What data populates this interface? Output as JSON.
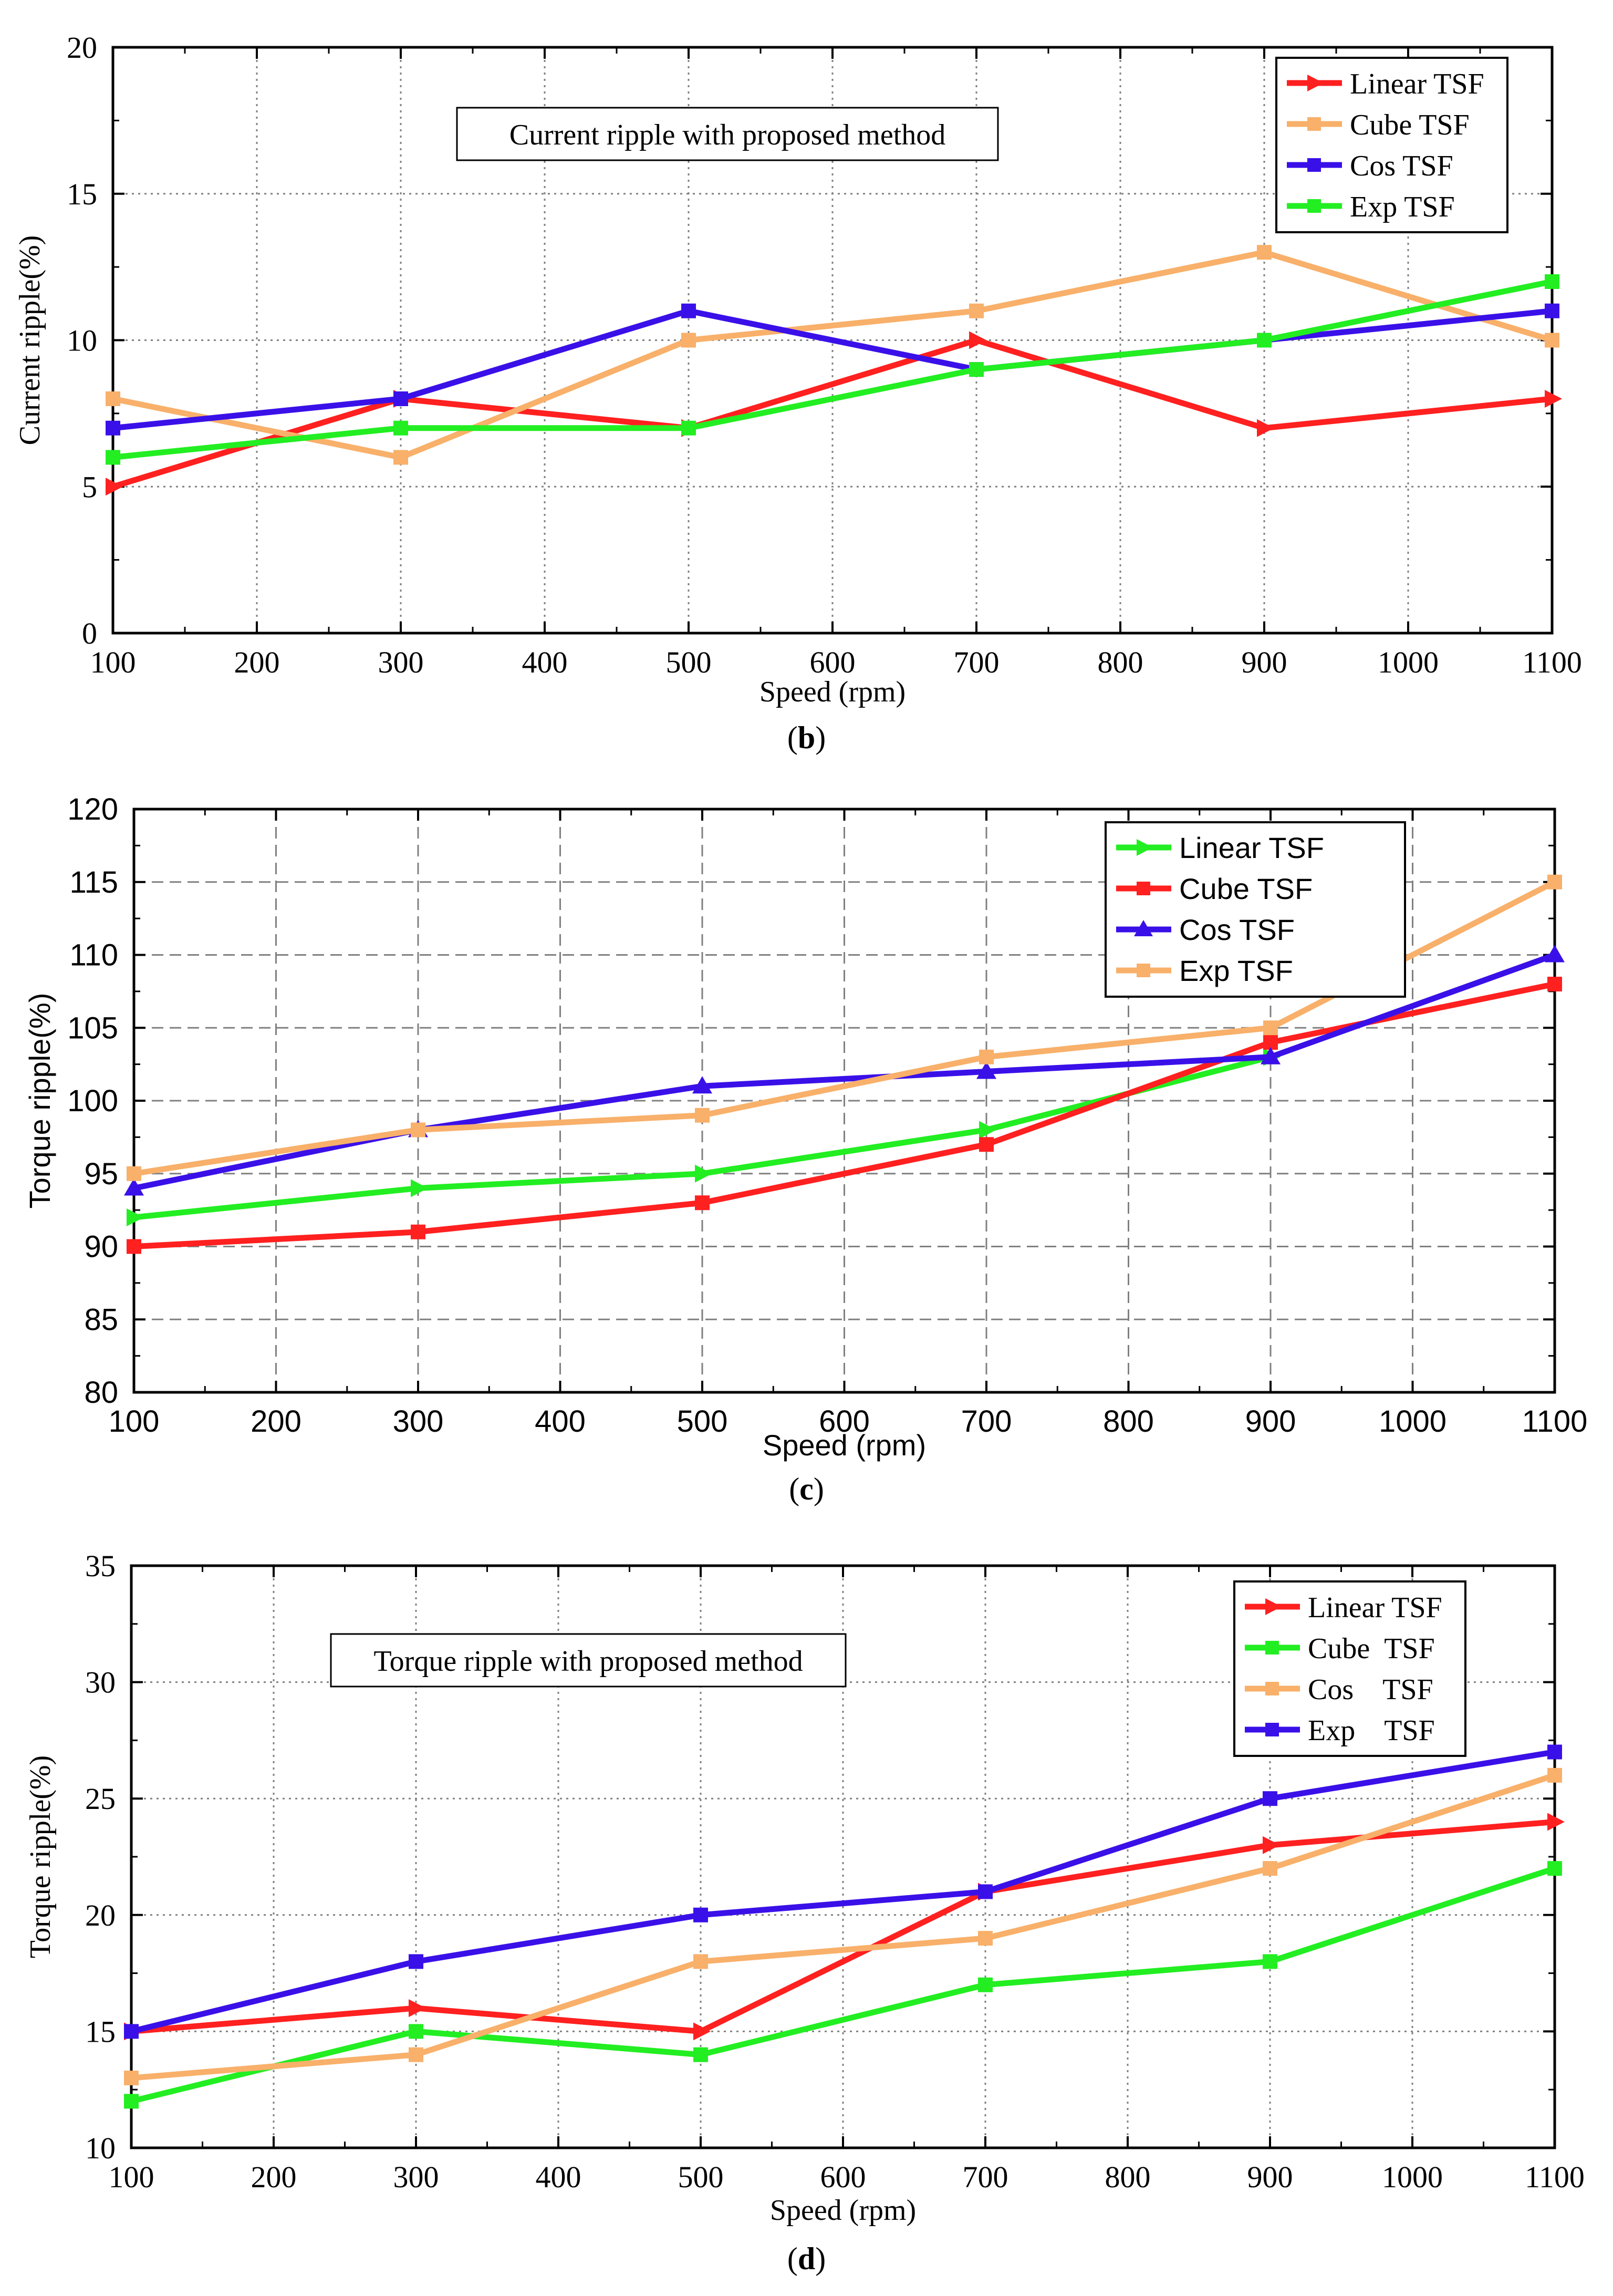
{
  "colors": {
    "red": "#ff2020",
    "orange": "#f8b06a",
    "blue": "#3a10e8",
    "green": "#22ee22",
    "grid": "#808080",
    "axis": "#000000"
  },
  "chart_data": [
    {
      "id": "b",
      "type": "line",
      "caption_open": "(",
      "caption_letter": "b",
      "caption_close": ")",
      "annotation": "Current ripple with proposed method",
      "xlabel": "Speed (rpm)",
      "ylabel": "Current ripple(%)",
      "xlim": [
        100,
        1100
      ],
      "ylim": [
        0,
        20
      ],
      "xticks": [
        100,
        200,
        300,
        400,
        500,
        600,
        700,
        800,
        900,
        1000,
        1100
      ],
      "yticks": [
        0,
        5,
        10,
        15,
        20
      ],
      "grid": "dotted",
      "legend_position": "top-right",
      "x": [
        100,
        300,
        500,
        700,
        900,
        1100
      ],
      "series": [
        {
          "name": "Linear TSF",
          "color": "#ff2020",
          "marker": "triangle-right",
          "values": [
            5,
            8,
            7,
            10,
            7,
            8
          ]
        },
        {
          "name": "Cube TSF",
          "color": "#f8b06a",
          "marker": "square",
          "values": [
            8,
            6,
            10,
            11,
            13,
            10
          ]
        },
        {
          "name": "Cos TSF",
          "color": "#3a10e8",
          "marker": "square",
          "values": [
            7,
            8,
            11,
            9,
            10,
            11
          ]
        },
        {
          "name": "Exp TSF",
          "color": "#22ee22",
          "marker": "square",
          "values": [
            6,
            7,
            7,
            9,
            10,
            12
          ]
        }
      ]
    },
    {
      "id": "c",
      "type": "line",
      "caption_open": "(",
      "caption_letter": "c",
      "caption_close": ")",
      "annotation": "",
      "xlabel": "Speed (rpm)",
      "ylabel": "Torque ripple(%)",
      "xlim": [
        100,
        1100
      ],
      "ylim": [
        80,
        120
      ],
      "xticks": [
        100,
        200,
        300,
        400,
        500,
        600,
        700,
        800,
        900,
        1000,
        1100
      ],
      "yticks": [
        80,
        85,
        90,
        95,
        100,
        105,
        110,
        115,
        120
      ],
      "grid": "dashed",
      "legend_position": "top-right",
      "x": [
        100,
        300,
        500,
        700,
        900,
        1100
      ],
      "series": [
        {
          "name": "Linear TSF",
          "color": "#22ee22",
          "marker": "triangle-right",
          "values": [
            92,
            94,
            95,
            98,
            103,
            null
          ]
        },
        {
          "name": "Cube TSF",
          "color": "#ff2020",
          "marker": "square",
          "values": [
            90,
            91,
            93,
            97,
            104,
            108
          ]
        },
        {
          "name": "Cos TSF",
          "color": "#3a10e8",
          "marker": "triangle-up",
          "values": [
            94,
            98,
            101,
            102,
            103,
            110
          ]
        },
        {
          "name": "Exp TSF",
          "color": "#f8b06a",
          "marker": "square",
          "values": [
            95,
            98,
            99,
            103,
            105,
            115
          ]
        }
      ]
    },
    {
      "id": "d",
      "type": "line",
      "caption_open": "(",
      "caption_letter": "d",
      "caption_close": ")",
      "annotation": "Torque ripple with proposed method",
      "xlabel": "Speed (rpm)",
      "ylabel": "Torque ripple(%)",
      "xlim": [
        100,
        1100
      ],
      "ylim": [
        10,
        35
      ],
      "xticks": [
        100,
        200,
        300,
        400,
        500,
        600,
        700,
        800,
        900,
        1000,
        1100
      ],
      "yticks": [
        10,
        15,
        20,
        25,
        30,
        35
      ],
      "grid": "dotted",
      "legend_position": "top-right",
      "x": [
        100,
        300,
        500,
        700,
        900,
        1100
      ],
      "series": [
        {
          "name": "Linear TSF",
          "color": "#ff2020",
          "marker": "triangle-right",
          "values": [
            15,
            16,
            15,
            21,
            23,
            24
          ]
        },
        {
          "name": "Cube  TSF",
          "color": "#22ee22",
          "marker": "square",
          "values": [
            12,
            15,
            14,
            17,
            18,
            22
          ]
        },
        {
          "name": "Cos    TSF",
          "color": "#f8b06a",
          "marker": "square",
          "values": [
            13,
            14,
            18,
            19,
            22,
            26
          ]
        },
        {
          "name": "Exp    TSF",
          "color": "#3a10e8",
          "marker": "square",
          "values": [
            15,
            18,
            20,
            21,
            25,
            27
          ]
        }
      ]
    }
  ]
}
